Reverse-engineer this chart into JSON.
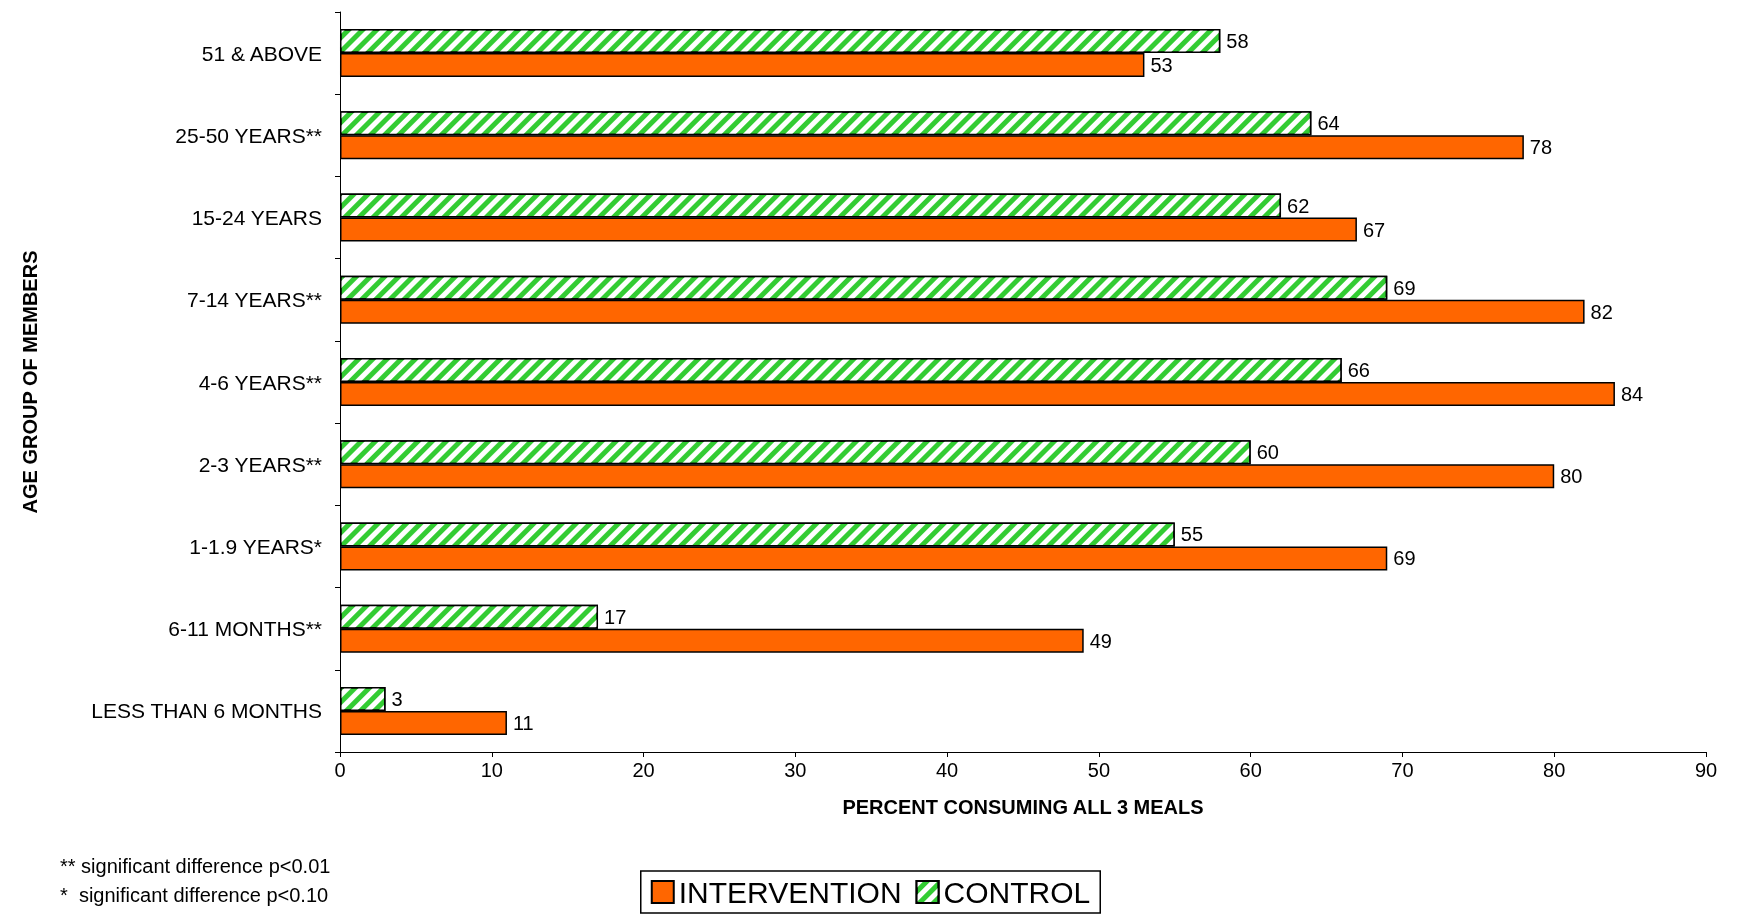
{
  "chart_data": {
    "type": "bar",
    "orientation": "horizontal",
    "xlabel": "PERCENT CONSUMING ALL 3 MEALS",
    "ylabel": "AGE GROUP OF MEMBERS",
    "categories": [
      "51 & ABOVE",
      "25-50 YEARS**",
      "15-24 YEARS",
      "7-14 YEARS**",
      "4-6 YEARS**",
      "2-3 YEARS**",
      "1-1.9 YEARS*",
      "6-11 MONTHS**",
      "LESS THAN 6 MONTHS"
    ],
    "series": [
      {
        "name": "INTERVENTION",
        "color": "#ff6600",
        "values": [
          53,
          78,
          67,
          82,
          84,
          80,
          69,
          49,
          11
        ]
      },
      {
        "name": "CONTROL",
        "color": "#33cc33",
        "values": [
          58,
          64,
          62,
          69,
          66,
          60,
          55,
          17,
          3
        ]
      }
    ],
    "xlim": [
      0,
      90
    ],
    "xticks": [
      0,
      10,
      20,
      30,
      40,
      50,
      60,
      70,
      80,
      90
    ],
    "grid": false,
    "legend": "bottom",
    "data_labels": true,
    "annotations": [
      "** significant difference p<0.01",
      "*  significant difference p<0.10"
    ]
  }
}
